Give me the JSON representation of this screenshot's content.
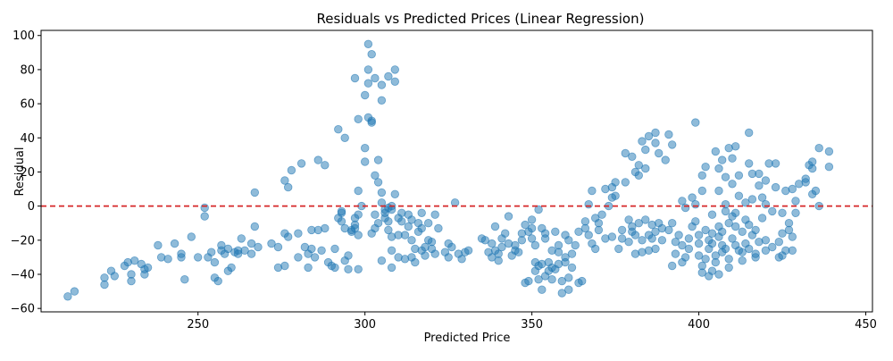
{
  "chart_data": {
    "type": "scatter",
    "title": "Residuals vs Predicted Prices (Linear Regression)",
    "xlabel": "Predicted Price",
    "ylabel": "Residual",
    "xlim": [
      203,
      452
    ],
    "ylim": [
      -62,
      103
    ],
    "x_ticks": [
      250,
      300,
      350,
      400,
      450
    ],
    "y_ticks": [
      -60,
      -40,
      -20,
      0,
      20,
      40,
      60,
      80,
      100
    ],
    "grid": false,
    "legend": "none",
    "reference_line": {
      "y": 0,
      "color": "#d62728",
      "style": "dashed"
    },
    "point_color": "#1f77b4",
    "point_alpha": 0.5,
    "points": [
      [
        211,
        -53
      ],
      [
        213,
        -50
      ],
      [
        222,
        -46
      ],
      [
        222,
        -42
      ],
      [
        224,
        -38
      ],
      [
        225,
        -41
      ],
      [
        228,
        -35
      ],
      [
        229,
        -33
      ],
      [
        230,
        -44
      ],
      [
        230,
        -40
      ],
      [
        231,
        -32
      ],
      [
        233,
        -34
      ],
      [
        234,
        -40
      ],
      [
        234,
        -37
      ],
      [
        235,
        -36
      ],
      [
        238,
        -23
      ],
      [
        239,
        -30
      ],
      [
        241,
        -31
      ],
      [
        243,
        -22
      ],
      [
        245,
        -28
      ],
      [
        245,
        -30
      ],
      [
        246,
        -43
      ],
      [
        248,
        -18
      ],
      [
        250,
        -30
      ],
      [
        252,
        -1
      ],
      [
        252,
        -6
      ],
      [
        253,
        -30
      ],
      [
        254,
        -27
      ],
      [
        255,
        -33
      ],
      [
        255,
        -42
      ],
      [
        256,
        -44
      ],
      [
        257,
        -23
      ],
      [
        257,
        -26
      ],
      [
        258,
        -28
      ],
      [
        259,
        -25
      ],
      [
        259,
        -38
      ],
      [
        260,
        -36
      ],
      [
        261,
        -27
      ],
      [
        262,
        -26
      ],
      [
        262,
        -28
      ],
      [
        263,
        -19
      ],
      [
        264,
        -26
      ],
      [
        266,
        -28
      ],
      [
        266,
        -22
      ],
      [
        267,
        -12
      ],
      [
        267,
        8
      ],
      [
        268,
        -24
      ],
      [
        272,
        -22
      ],
      [
        274,
        -24
      ],
      [
        274,
        -36
      ],
      [
        276,
        15
      ],
      [
        276,
        -16
      ],
      [
        276,
        -35
      ],
      [
        277,
        -18
      ],
      [
        277,
        11
      ],
      [
        278,
        21
      ],
      [
        280,
        -30
      ],
      [
        280,
        -16
      ],
      [
        281,
        25
      ],
      [
        282,
        -24
      ],
      [
        283,
        -28
      ],
      [
        283,
        -36
      ],
      [
        284,
        -25
      ],
      [
        284,
        -14
      ],
      [
        285,
        -30
      ],
      [
        286,
        -14
      ],
      [
        286,
        27
      ],
      [
        287,
        -26
      ],
      [
        288,
        -13
      ],
      [
        288,
        24
      ],
      [
        289,
        -33
      ],
      [
        290,
        -35
      ],
      [
        291,
        -25
      ],
      [
        291,
        -36
      ],
      [
        292,
        45
      ],
      [
        292,
        -7
      ],
      [
        293,
        -9
      ],
      [
        293,
        -4
      ],
      [
        293,
        -3
      ],
      [
        294,
        40
      ],
      [
        294,
        -13
      ],
      [
        294,
        -32
      ],
      [
        295,
        -29
      ],
      [
        295,
        -37
      ],
      [
        296,
        -14
      ],
      [
        296,
        -15
      ],
      [
        297,
        -11
      ],
      [
        297,
        -7
      ],
      [
        297,
        -13
      ],
      [
        298,
        -37
      ],
      [
        297,
        75
      ],
      [
        298,
        -17
      ],
      [
        298,
        -5
      ],
      [
        298,
        51
      ],
      [
        298,
        9
      ],
      [
        299,
        0
      ],
      [
        300,
        65
      ],
      [
        300,
        34
      ],
      [
        300,
        26
      ],
      [
        301,
        52
      ],
      [
        301,
        80
      ],
      [
        301,
        72
      ],
      [
        301,
        95
      ],
      [
        302,
        89
      ],
      [
        302,
        50
      ],
      [
        302,
        49
      ],
      [
        302,
        -16
      ],
      [
        303,
        75
      ],
      [
        303,
        -13
      ],
      [
        303,
        18
      ],
      [
        303,
        -5
      ],
      [
        304,
        27
      ],
      [
        304,
        -10
      ],
      [
        304,
        14
      ],
      [
        305,
        71
      ],
      [
        305,
        -32
      ],
      [
        305,
        2
      ],
      [
        305,
        62
      ],
      [
        305,
        8
      ],
      [
        306,
        -7
      ],
      [
        306,
        -2
      ],
      [
        306,
        -4
      ],
      [
        307,
        -14
      ],
      [
        307,
        76
      ],
      [
        307,
        -9
      ],
      [
        307,
        -1
      ],
      [
        308,
        -36
      ],
      [
        308,
        -2
      ],
      [
        308,
        -18
      ],
      [
        308,
        -26
      ],
      [
        308,
        0
      ],
      [
        309,
        7
      ],
      [
        309,
        80
      ],
      [
        309,
        73
      ],
      [
        310,
        -30
      ],
      [
        310,
        -17
      ],
      [
        310,
        -7
      ],
      [
        311,
        -9
      ],
      [
        311,
        -4
      ],
      [
        312,
        -31
      ],
      [
        312,
        -17
      ],
      [
        313,
        -12
      ],
      [
        313,
        -5
      ],
      [
        314,
        -30
      ],
      [
        314,
        -8
      ],
      [
        314,
        -20
      ],
      [
        315,
        -33
      ],
      [
        315,
        -25
      ],
      [
        316,
        -10
      ],
      [
        316,
        -15
      ],
      [
        317,
        -4
      ],
      [
        317,
        -13
      ],
      [
        317,
        -26
      ],
      [
        318,
        -24
      ],
      [
        318,
        -29
      ],
      [
        319,
        -10
      ],
      [
        319,
        -20
      ],
      [
        320,
        -25
      ],
      [
        320,
        -21
      ],
      [
        321,
        -28
      ],
      [
        321,
        -5
      ],
      [
        322,
        -13
      ],
      [
        324,
        -27
      ],
      [
        325,
        -22
      ],
      [
        325,
        -30
      ],
      [
        326,
        -24
      ],
      [
        327,
        2
      ],
      [
        328,
        -28
      ],
      [
        329,
        -31
      ],
      [
        330,
        -27
      ],
      [
        331,
        -26
      ],
      [
        335,
        -19
      ],
      [
        336,
        -20
      ],
      [
        337,
        -27
      ],
      [
        338,
        -22
      ],
      [
        338,
        -30
      ],
      [
        339,
        -12
      ],
      [
        339,
        -26
      ],
      [
        340,
        -28
      ],
      [
        340,
        -32
      ],
      [
        341,
        -19
      ],
      [
        341,
        -24
      ],
      [
        342,
        -16
      ],
      [
        343,
        -6
      ],
      [
        343,
        -22
      ],
      [
        344,
        -29
      ],
      [
        345,
        -26
      ],
      [
        345,
        -23
      ],
      [
        346,
        -27
      ],
      [
        347,
        -16
      ],
      [
        347,
        -20
      ],
      [
        348,
        -11
      ],
      [
        348,
        -45
      ],
      [
        349,
        -44
      ],
      [
        349,
        -15
      ],
      [
        350,
        -8
      ],
      [
        350,
        -13
      ],
      [
        350,
        -19
      ],
      [
        351,
        -38
      ],
      [
        351,
        -33
      ],
      [
        351,
        -23
      ],
      [
        352,
        -43
      ],
      [
        352,
        -35
      ],
      [
        352,
        -2
      ],
      [
        353,
        -49
      ],
      [
        353,
        -34
      ],
      [
        353,
        -13
      ],
      [
        354,
        -41
      ],
      [
        354,
        -16
      ],
      [
        354,
        -19
      ],
      [
        355,
        -38
      ],
      [
        355,
        -33
      ],
      [
        356,
        -43
      ],
      [
        356,
        -36
      ],
      [
        356,
        -26
      ],
      [
        357,
        -15
      ],
      [
        357,
        -37
      ],
      [
        358,
        -27
      ],
      [
        358,
        -34
      ],
      [
        358,
        -23
      ],
      [
        359,
        -51
      ],
      [
        359,
        -44
      ],
      [
        360,
        -33
      ],
      [
        360,
        -17
      ],
      [
        360,
        -30
      ],
      [
        361,
        -49
      ],
      [
        361,
        -42
      ],
      [
        361,
        -20
      ],
      [
        362,
        -36
      ],
      [
        362,
        -28
      ],
      [
        363,
        -23
      ],
      [
        364,
        -45
      ],
      [
        364,
        -15
      ],
      [
        365,
        -44
      ],
      [
        366,
        -9
      ],
      [
        366,
        -13
      ],
      [
        367,
        -17
      ],
      [
        367,
        1
      ],
      [
        368,
        -22
      ],
      [
        368,
        9
      ],
      [
        369,
        -25
      ],
      [
        369,
        -7
      ],
      [
        370,
        -14
      ],
      [
        370,
        -10
      ],
      [
        371,
        -5
      ],
      [
        372,
        -19
      ],
      [
        372,
        10
      ],
      [
        373,
        0
      ],
      [
        374,
        -18
      ],
      [
        374,
        5
      ],
      [
        374,
        11
      ],
      [
        375,
        6
      ],
      [
        375,
        14
      ],
      [
        376,
        -25
      ],
      [
        377,
        -19
      ],
      [
        377,
        -14
      ],
      [
        378,
        31
      ],
      [
        378,
        14
      ],
      [
        379,
        -8
      ],
      [
        379,
        -21
      ],
      [
        380,
        29
      ],
      [
        380,
        -12
      ],
      [
        380,
        -15
      ],
      [
        381,
        -28
      ],
      [
        381,
        20
      ],
      [
        381,
        -17
      ],
      [
        382,
        24
      ],
      [
        382,
        18
      ],
      [
        382,
        -10
      ],
      [
        383,
        -20
      ],
      [
        383,
        -27
      ],
      [
        383,
        38
      ],
      [
        384,
        33
      ],
      [
        384,
        -8
      ],
      [
        384,
        22
      ],
      [
        385,
        -26
      ],
      [
        385,
        -17
      ],
      [
        385,
        41
      ],
      [
        386,
        -19
      ],
      [
        386,
        -11
      ],
      [
        387,
        -15
      ],
      [
        387,
        -25
      ],
      [
        387,
        43
      ],
      [
        387,
        37
      ],
      [
        388,
        31
      ],
      [
        388,
        -10
      ],
      [
        389,
        -13
      ],
      [
        389,
        -20
      ],
      [
        390,
        27
      ],
      [
        391,
        -14
      ],
      [
        391,
        42
      ],
      [
        392,
        -35
      ],
      [
        392,
        -10
      ],
      [
        392,
        36
      ],
      [
        393,
        -21
      ],
      [
        393,
        -28
      ],
      [
        394,
        -17
      ],
      [
        395,
        -23
      ],
      [
        395,
        -33
      ],
      [
        395,
        3
      ],
      [
        396,
        -1
      ],
      [
        396,
        -30
      ],
      [
        397,
        -19
      ],
      [
        397,
        -25
      ],
      [
        398,
        5
      ],
      [
        398,
        -12
      ],
      [
        399,
        49
      ],
      [
        399,
        1
      ],
      [
        399,
        -9
      ],
      [
        400,
        -22
      ],
      [
        400,
        -29
      ],
      [
        400,
        -17
      ],
      [
        401,
        -35
      ],
      [
        401,
        18
      ],
      [
        401,
        -39
      ],
      [
        401,
        9
      ],
      [
        402,
        -14
      ],
      [
        402,
        -31
      ],
      [
        402,
        23
      ],
      [
        403,
        -41
      ],
      [
        403,
        -20
      ],
      [
        403,
        -25
      ],
      [
        404,
        -5
      ],
      [
        404,
        -16
      ],
      [
        404,
        -38
      ],
      [
        404,
        -22
      ],
      [
        405,
        32
      ],
      [
        405,
        -29
      ],
      [
        405,
        -33
      ],
      [
        406,
        -18
      ],
      [
        406,
        -12
      ],
      [
        406,
        9
      ],
      [
        406,
        -40
      ],
      [
        406,
        22
      ],
      [
        407,
        -27
      ],
      [
        407,
        -15
      ],
      [
        407,
        27
      ],
      [
        407,
        -23
      ],
      [
        408,
        17
      ],
      [
        408,
        -3
      ],
      [
        408,
        1
      ],
      [
        408,
        -25
      ],
      [
        409,
        -10
      ],
      [
        409,
        34
      ],
      [
        409,
        -31
      ],
      [
        409,
        -36
      ],
      [
        410,
        13
      ],
      [
        410,
        -6
      ],
      [
        410,
        -19
      ],
      [
        410,
        28
      ],
      [
        411,
        35
      ],
      [
        411,
        -23
      ],
      [
        411,
        -4
      ],
      [
        411,
        -12
      ],
      [
        412,
        6
      ],
      [
        412,
        -26
      ],
      [
        412,
        18
      ],
      [
        413,
        -27
      ],
      [
        413,
        -15
      ],
      [
        413,
        -32
      ],
      [
        414,
        2
      ],
      [
        414,
        -8
      ],
      [
        414,
        -22
      ],
      [
        415,
        43
      ],
      [
        415,
        -11
      ],
      [
        415,
        25
      ],
      [
        415,
        -25
      ],
      [
        416,
        4
      ],
      [
        416,
        19
      ],
      [
        416,
        -17
      ],
      [
        417,
        -30
      ],
      [
        417,
        -14
      ],
      [
        417,
        -28
      ],
      [
        418,
        12
      ],
      [
        418,
        19
      ],
      [
        418,
        -21
      ],
      [
        419,
        -7
      ],
      [
        419,
        5
      ],
      [
        420,
        -20
      ],
      [
        420,
        -26
      ],
      [
        420,
        1
      ],
      [
        420,
        15
      ],
      [
        421,
        25
      ],
      [
        422,
        -3
      ],
      [
        422,
        -24
      ],
      [
        423,
        11
      ],
      [
        423,
        25
      ],
      [
        424,
        -30
      ],
      [
        424,
        -21
      ],
      [
        425,
        -29
      ],
      [
        425,
        -16
      ],
      [
        425,
        -4
      ],
      [
        426,
        -26
      ],
      [
        426,
        9
      ],
      [
        427,
        -14
      ],
      [
        427,
        -10
      ],
      [
        428,
        -18
      ],
      [
        428,
        10
      ],
      [
        428,
        -26
      ],
      [
        429,
        -4
      ],
      [
        429,
        3
      ],
      [
        430,
        13
      ],
      [
        432,
        16
      ],
      [
        432,
        14
      ],
      [
        433,
        24
      ],
      [
        434,
        7
      ],
      [
        434,
        26
      ],
      [
        434,
        22
      ],
      [
        435,
        9
      ],
      [
        436,
        0
      ],
      [
        436,
        34
      ],
      [
        439,
        32
      ],
      [
        439,
        23
      ]
    ]
  }
}
